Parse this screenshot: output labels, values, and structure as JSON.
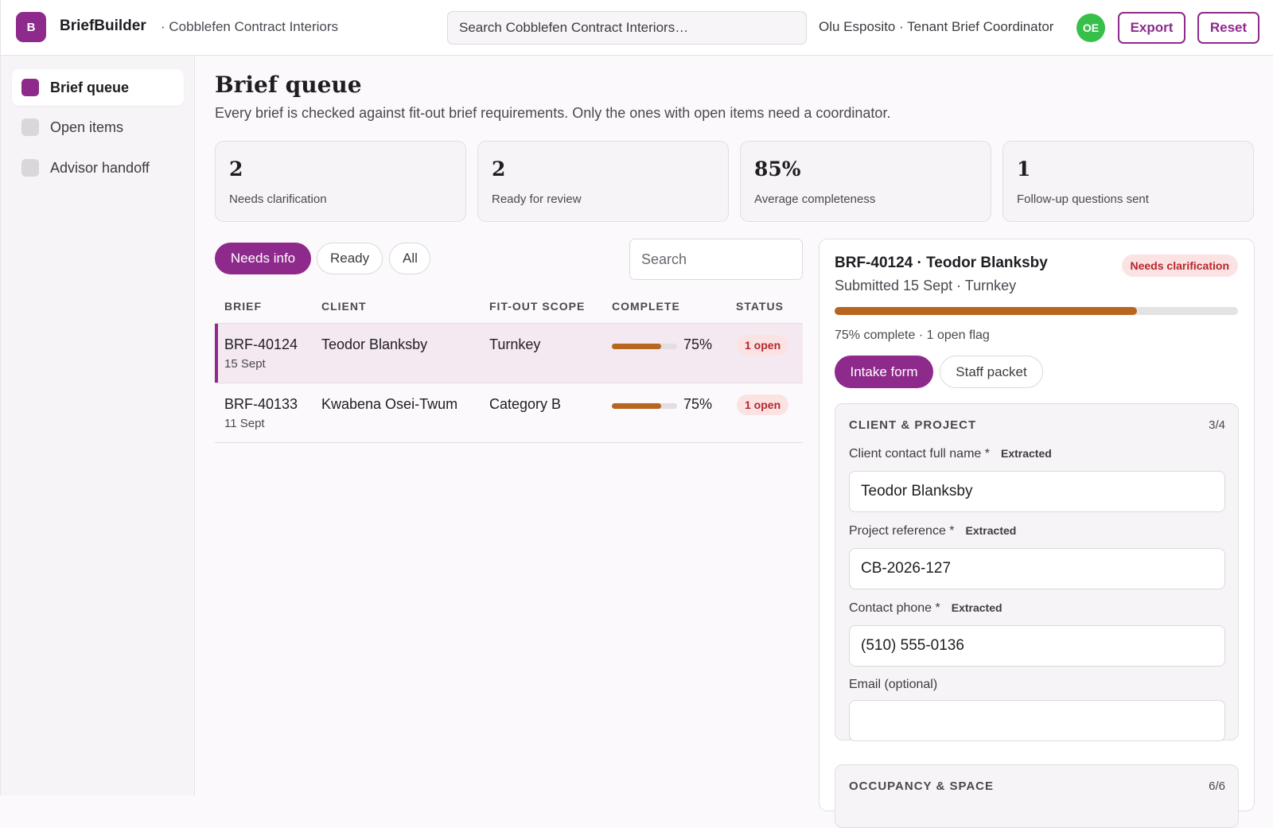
{
  "topbar": {
    "logo_letter": "B",
    "app_name": "BriefBuilder",
    "org_name": "· Cobblefen Contract Interiors",
    "search_placeholder": "Search Cobblefen Contract Interiors…",
    "user_label": "Olu Esposito · Tenant Brief Coordinator",
    "avatar_initials": "OE",
    "export_label": "Export",
    "reset_label": "Reset"
  },
  "sidebar": {
    "items": [
      {
        "label": "Brief queue",
        "active": true
      },
      {
        "label": "Open items",
        "active": false
      },
      {
        "label": "Advisor handoff",
        "active": false
      }
    ]
  },
  "main": {
    "title": "Brief queue",
    "subtitle": "Every brief is checked against fit-out brief requirements. Only the ones with open items need a coordinator.",
    "stats": [
      {
        "value": "2",
        "label": "Needs clarification"
      },
      {
        "value": "2",
        "label": "Ready for review"
      },
      {
        "value": "85%",
        "label": "Average completeness"
      },
      {
        "value": "1",
        "label": "Follow-up questions sent"
      }
    ],
    "filters": [
      {
        "label": "Needs info",
        "active": true
      },
      {
        "label": "Ready",
        "active": false
      },
      {
        "label": "All",
        "active": false
      }
    ],
    "search_placeholder": "Search",
    "columns": [
      "BRIEF",
      "CLIENT",
      "FIT-OUT SCOPE",
      "COMPLETE",
      "STATUS"
    ],
    "rows": [
      {
        "id": "BRF-40124",
        "date": "15 Sept",
        "client": "Teodor Blanksby",
        "scope": "Turnkey",
        "complete": "75%",
        "complete_fraction": 0.75,
        "status": "1 open",
        "selected": true
      },
      {
        "id": "BRF-40133",
        "date": "11 Sept",
        "client": "Kwabena Osei-Twum",
        "scope": "Category B",
        "complete": "75%",
        "complete_fraction": 0.75,
        "status": "1 open",
        "selected": false
      }
    ]
  },
  "detail": {
    "title": "BRF-40124 · Teodor Blanksby",
    "subtitle": "Submitted 15 Sept · Turnkey",
    "badge": "Needs clarification",
    "progress_fraction": 0.75,
    "meta": "75% complete · 1 open flag",
    "tabs": [
      {
        "label": "Intake form",
        "active": true
      },
      {
        "label": "Staff packet",
        "active": false
      }
    ],
    "sections": [
      {
        "title": "CLIENT & PROJECT",
        "count": "3/4",
        "fields": [
          {
            "label": "Client contact full name *",
            "tag": "Extracted",
            "value": "Teodor Blanksby"
          },
          {
            "label": "Project reference *",
            "tag": "Extracted",
            "value": "CB-2026-127"
          },
          {
            "label": "Contact phone *",
            "tag": "Extracted",
            "value": "(510) 555-0136"
          },
          {
            "label": "Email (optional)",
            "tag": "",
            "value": ""
          }
        ]
      },
      {
        "title": "OCCUPANCY & SPACE",
        "count": "6/6"
      }
    ]
  },
  "colors": {
    "accent": "#8e2a8c",
    "progress": "#b8651f",
    "alert_bg": "#fbe3e3",
    "alert_text": "#b5262e",
    "avatar": "#36c04a"
  }
}
